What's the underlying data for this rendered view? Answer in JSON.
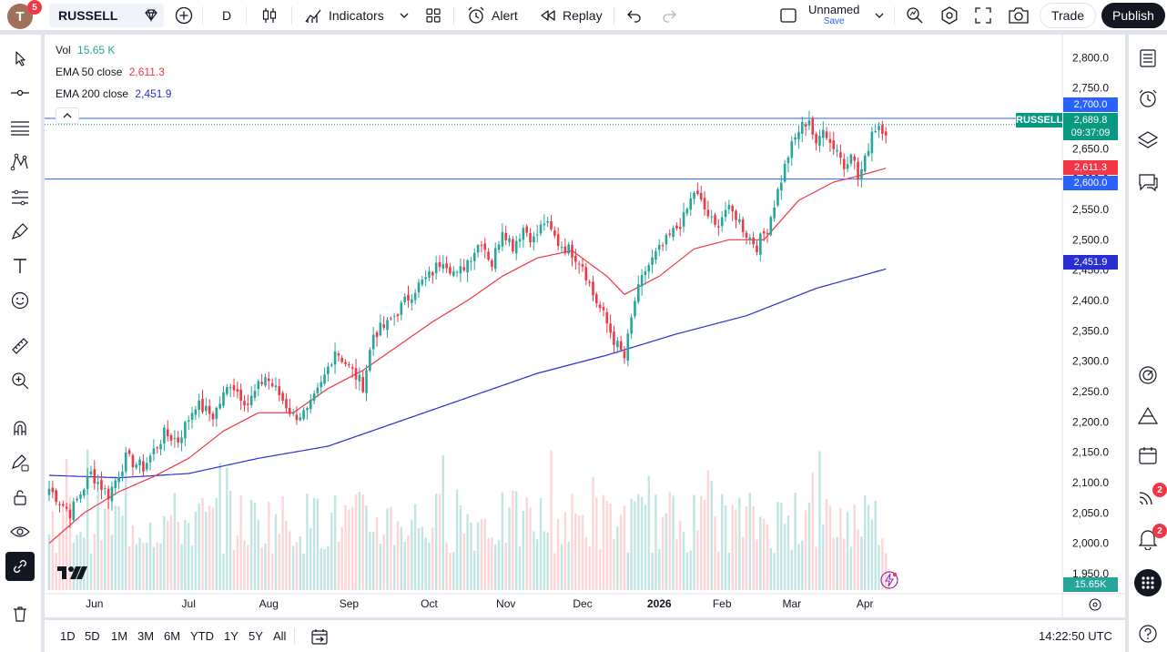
{
  "topbar": {
    "avatar_letter": "T",
    "notifications": "5",
    "symbol": "RUSSELL",
    "interval": "D",
    "indicators_label": "Indicators",
    "alert_label": "Alert",
    "replay_label": "Replay",
    "layout_name": "Unnamed",
    "layout_save": "Save",
    "trade_label": "Trade",
    "publish_label": "Publish"
  },
  "legend": {
    "vol_label": "Vol",
    "vol_value": "15.65 K",
    "ema50_label": "EMA 50 close",
    "ema50_value": "2,611.3",
    "ema200_label": "EMA 200 close",
    "ema200_value": "2,451.9"
  },
  "price_tags": {
    "symbol": "RUSSELL",
    "last": "2,689.8",
    "countdown": "09:37:09",
    "line_top": "2,700.0",
    "ema50": "2,611.3",
    "line_bottom": "2,600.0",
    "ema200": "2,451.9",
    "volume": "15.65K"
  },
  "bottombar": {
    "ranges": [
      "1D",
      "5D",
      "1M",
      "3M",
      "6M",
      "YTD",
      "1Y",
      "5Y",
      "All"
    ],
    "clock": "14:22:50 UTC"
  },
  "sidebar_badges": {
    "ideas": "2",
    "alerts": "2"
  },
  "colors": {
    "up": "#26a69a",
    "down": "#f23645",
    "ema50": "#f23645",
    "ema200": "#2a2ed1",
    "hline": "#2962ff"
  },
  "chart_data": {
    "type": "candlestick",
    "y_ticks": [
      "2,800.0",
      "2,750.0",
      "2,700.0",
      "2,650.0",
      "2,600.0",
      "2,550.0",
      "2,500.0",
      "2,450.0",
      "2,400.0",
      "2,350.0",
      "2,300.0",
      "2,250.0",
      "2,200.0",
      "2,150.0",
      "2,100.0",
      "2,050.0",
      "2,000.0",
      "1,950.0"
    ],
    "y_tick_values": [
      2800,
      2750,
      2700,
      2650,
      2600,
      2550,
      2500,
      2450,
      2400,
      2350,
      2300,
      2250,
      2200,
      2150,
      2100,
      2050,
      2000,
      1950
    ],
    "x_labels": [
      "Jun",
      "Jul",
      "Aug",
      "Sep",
      "Oct",
      "Nov",
      "Dec",
      "2026",
      "Feb",
      "Mar",
      "Apr"
    ],
    "ylim": [
      1920,
      2835
    ],
    "horizontal_lines": [
      2700,
      2600
    ],
    "close_path": [
      [
        0,
        2090
      ],
      [
        6,
        2050
      ],
      [
        12,
        2115
      ],
      [
        17,
        2080
      ],
      [
        22,
        2140
      ],
      [
        27,
        2125
      ],
      [
        33,
        2180
      ],
      [
        37,
        2170
      ],
      [
        42,
        2230
      ],
      [
        47,
        2210
      ],
      [
        52,
        2265
      ],
      [
        57,
        2230
      ],
      [
        62,
        2275
      ],
      [
        66,
        2245
      ],
      [
        70,
        2210
      ],
      [
        74,
        2215
      ],
      [
        78,
        2260
      ],
      [
        82,
        2320
      ],
      [
        86,
        2290
      ],
      [
        90,
        2260
      ],
      [
        93,
        2345
      ],
      [
        97,
        2360
      ],
      [
        101,
        2390
      ],
      [
        105,
        2420
      ],
      [
        109,
        2440
      ],
      [
        113,
        2470
      ],
      [
        117,
        2440
      ],
      [
        121,
        2475
      ],
      [
        124,
        2500
      ],
      [
        127,
        2460
      ],
      [
        130,
        2520
      ],
      [
        133,
        2490
      ],
      [
        136,
        2520
      ],
      [
        139,
        2500
      ],
      [
        142,
        2530
      ],
      [
        146,
        2495
      ],
      [
        150,
        2480
      ],
      [
        153,
        2460
      ],
      [
        156,
        2410
      ],
      [
        159,
        2375
      ],
      [
        162,
        2335
      ],
      [
        165,
        2305
      ],
      [
        168,
        2400
      ],
      [
        171,
        2450
      ],
      [
        174,
        2475
      ],
      [
        178,
        2505
      ],
      [
        182,
        2535
      ],
      [
        185,
        2580
      ],
      [
        188,
        2550
      ],
      [
        191,
        2520
      ],
      [
        194,
        2550
      ],
      [
        197,
        2540
      ],
      [
        200,
        2510
      ],
      [
        203,
        2490
      ],
      [
        206,
        2520
      ],
      [
        209,
        2580
      ],
      [
        212,
        2640
      ],
      [
        215,
        2680
      ],
      [
        218,
        2700
      ],
      [
        220,
        2650
      ],
      [
        222,
        2690
      ],
      [
        224,
        2660
      ],
      [
        226,
        2650
      ],
      [
        228,
        2620
      ],
      [
        230,
        2650
      ],
      [
        232,
        2600
      ],
      [
        234,
        2630
      ],
      [
        236,
        2680
      ],
      [
        238,
        2690
      ],
      [
        240,
        2680
      ]
    ],
    "ema50": [
      [
        0,
        2000
      ],
      [
        10,
        2050
      ],
      [
        20,
        2085
      ],
      [
        30,
        2110
      ],
      [
        40,
        2140
      ],
      [
        50,
        2185
      ],
      [
        60,
        2215
      ],
      [
        70,
        2215
      ],
      [
        80,
        2255
      ],
      [
        90,
        2285
      ],
      [
        100,
        2325
      ],
      [
        110,
        2365
      ],
      [
        120,
        2400
      ],
      [
        130,
        2440
      ],
      [
        140,
        2470
      ],
      [
        150,
        2482
      ],
      [
        160,
        2440
      ],
      [
        165,
        2410
      ],
      [
        175,
        2440
      ],
      [
        185,
        2485
      ],
      [
        195,
        2500
      ],
      [
        205,
        2500
      ],
      [
        215,
        2565
      ],
      [
        225,
        2595
      ],
      [
        232,
        2605
      ],
      [
        240,
        2618
      ]
    ],
    "ema200": [
      [
        0,
        2112
      ],
      [
        20,
        2108
      ],
      [
        40,
        2115
      ],
      [
        60,
        2140
      ],
      [
        80,
        2160
      ],
      [
        100,
        2200
      ],
      [
        120,
        2240
      ],
      [
        140,
        2280
      ],
      [
        160,
        2310
      ],
      [
        180,
        2345
      ],
      [
        200,
        2375
      ],
      [
        220,
        2420
      ],
      [
        240,
        2452
      ]
    ]
  }
}
